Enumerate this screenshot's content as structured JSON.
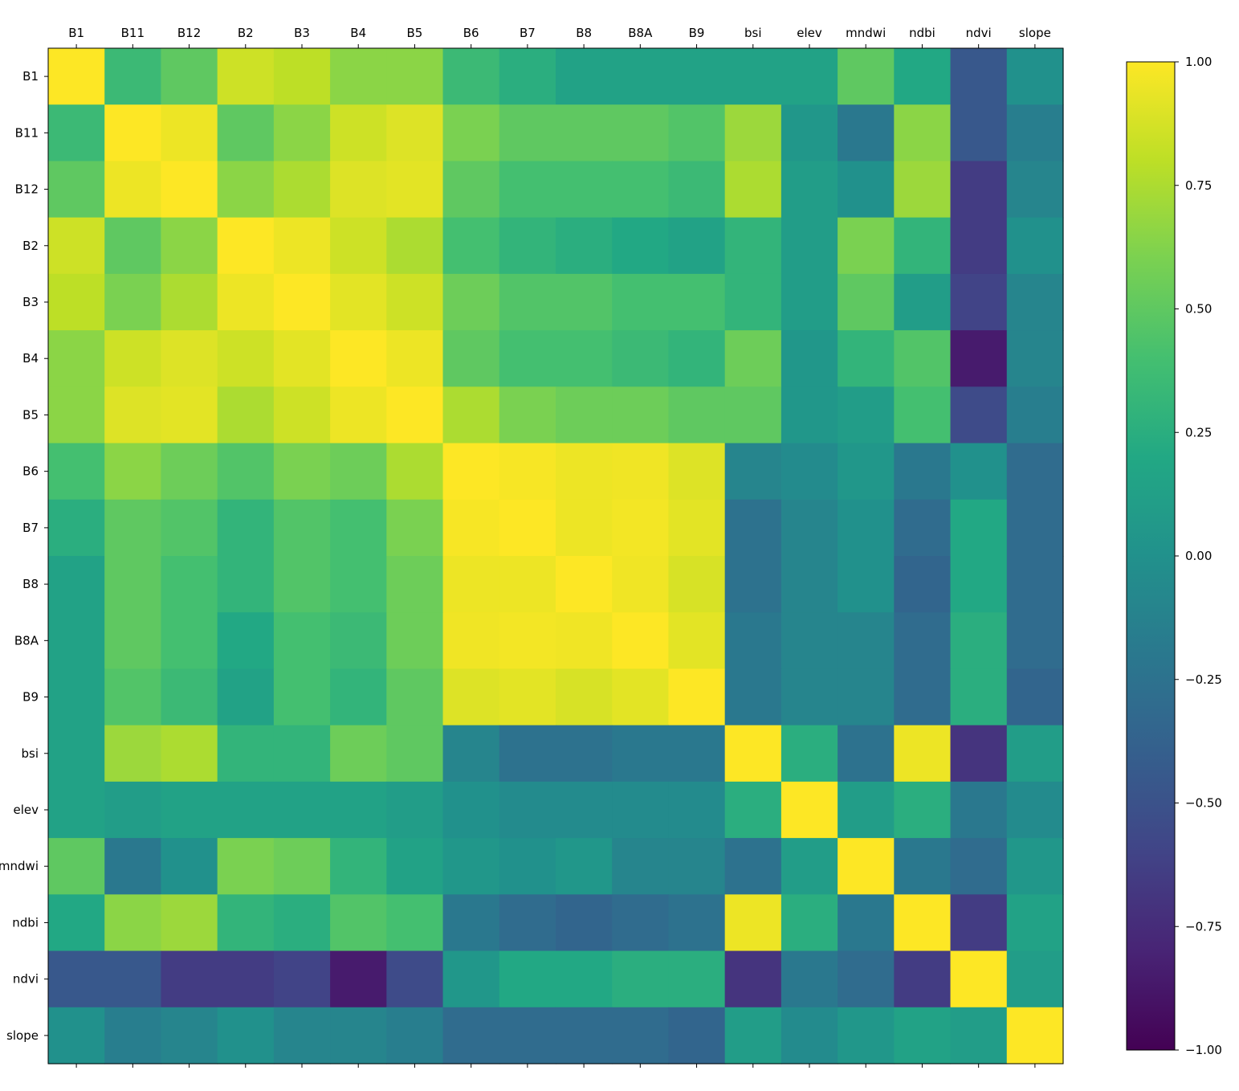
{
  "chart_data": {
    "type": "heatmap",
    "title": "",
    "xlabel": "",
    "ylabel": "",
    "labels": [
      "B1",
      "B11",
      "B12",
      "B2",
      "B3",
      "B4",
      "B5",
      "B6",
      "B7",
      "B8",
      "B8A",
      "B9",
      "bsi",
      "elev",
      "mndwi",
      "ndbi",
      "ndvi",
      "slope"
    ],
    "values": [
      [
        1.0,
        0.35,
        0.5,
        0.85,
        0.8,
        0.65,
        0.65,
        0.35,
        0.25,
        0.15,
        0.15,
        0.15,
        0.15,
        0.15,
        0.5,
        0.2,
        -0.45,
        0.0
      ],
      [
        0.35,
        1.0,
        0.95,
        0.5,
        0.65,
        0.85,
        0.9,
        0.6,
        0.5,
        0.5,
        0.5,
        0.45,
        0.7,
        0.05,
        -0.2,
        0.65,
        -0.45,
        -0.15
      ],
      [
        0.5,
        0.95,
        1.0,
        0.65,
        0.75,
        0.9,
        0.92,
        0.5,
        0.4,
        0.4,
        0.4,
        0.35,
        0.75,
        0.1,
        0.0,
        0.7,
        -0.65,
        -0.1
      ],
      [
        0.85,
        0.5,
        0.65,
        1.0,
        0.95,
        0.85,
        0.75,
        0.4,
        0.3,
        0.25,
        0.2,
        0.15,
        0.3,
        0.1,
        0.6,
        0.3,
        -0.65,
        0.0
      ],
      [
        0.8,
        0.6,
        0.75,
        0.95,
        1.0,
        0.92,
        0.85,
        0.55,
        0.45,
        0.45,
        0.4,
        0.4,
        0.3,
        0.1,
        0.5,
        0.1,
        -0.6,
        -0.1
      ],
      [
        0.65,
        0.85,
        0.9,
        0.85,
        0.92,
        1.0,
        0.95,
        0.5,
        0.4,
        0.4,
        0.35,
        0.3,
        0.55,
        0.05,
        0.3,
        0.45,
        -0.85,
        -0.1
      ],
      [
        0.65,
        0.9,
        0.92,
        0.75,
        0.85,
        0.95,
        1.0,
        0.75,
        0.6,
        0.55,
        0.55,
        0.5,
        0.5,
        0.05,
        0.1,
        0.4,
        -0.55,
        -0.15
      ],
      [
        0.4,
        0.65,
        0.55,
        0.45,
        0.6,
        0.55,
        0.75,
        1.0,
        0.98,
        0.95,
        0.96,
        0.9,
        -0.1,
        -0.05,
        0.05,
        -0.2,
        0.0,
        -0.3
      ],
      [
        0.25,
        0.5,
        0.45,
        0.3,
        0.45,
        0.4,
        0.6,
        0.98,
        1.0,
        0.95,
        0.97,
        0.92,
        -0.25,
        -0.1,
        0.0,
        -0.3,
        0.2,
        -0.3
      ],
      [
        0.15,
        0.5,
        0.4,
        0.3,
        0.45,
        0.4,
        0.55,
        0.95,
        0.95,
        1.0,
        0.96,
        0.88,
        -0.25,
        -0.1,
        0.0,
        -0.35,
        0.2,
        -0.3
      ],
      [
        0.15,
        0.5,
        0.4,
        0.2,
        0.4,
        0.35,
        0.55,
        0.96,
        0.97,
        0.96,
        1.0,
        0.92,
        -0.2,
        -0.1,
        -0.1,
        -0.3,
        0.25,
        -0.3
      ],
      [
        0.15,
        0.45,
        0.35,
        0.15,
        0.4,
        0.3,
        0.5,
        0.9,
        0.92,
        0.88,
        0.92,
        1.0,
        -0.2,
        -0.1,
        -0.1,
        -0.3,
        0.25,
        -0.35
      ],
      [
        0.15,
        0.7,
        0.75,
        0.3,
        0.3,
        0.55,
        0.5,
        -0.1,
        -0.25,
        -0.25,
        -0.2,
        -0.2,
        1.0,
        0.25,
        -0.25,
        0.95,
        -0.7,
        0.1
      ],
      [
        0.15,
        0.1,
        0.15,
        0.15,
        0.15,
        0.15,
        0.1,
        0.0,
        -0.05,
        -0.05,
        -0.05,
        -0.05,
        0.25,
        1.0,
        0.1,
        0.25,
        -0.2,
        -0.05
      ],
      [
        0.5,
        -0.2,
        0.0,
        0.6,
        0.55,
        0.3,
        0.15,
        0.05,
        0.0,
        0.05,
        -0.1,
        -0.1,
        -0.25,
        0.1,
        1.0,
        -0.2,
        -0.3,
        0.05
      ],
      [
        0.2,
        0.65,
        0.7,
        0.3,
        0.25,
        0.45,
        0.4,
        -0.2,
        -0.3,
        -0.35,
        -0.3,
        -0.25,
        0.95,
        0.25,
        -0.2,
        1.0,
        -0.65,
        0.15
      ],
      [
        -0.45,
        -0.45,
        -0.65,
        -0.65,
        -0.6,
        -0.85,
        -0.55,
        0.05,
        0.2,
        0.2,
        0.25,
        0.25,
        -0.7,
        -0.2,
        -0.3,
        -0.65,
        1.0,
        0.1
      ],
      [
        0.0,
        -0.15,
        -0.1,
        0.0,
        -0.1,
        -0.1,
        -0.15,
        -0.3,
        -0.3,
        -0.3,
        -0.3,
        -0.35,
        0.1,
        -0.05,
        0.05,
        0.15,
        0.1,
        1.0
      ]
    ],
    "colormap": "viridis",
    "vmin": -1.0,
    "vmax": 1.0,
    "colorbar_ticks": [
      "1.00",
      "0.75",
      "0.50",
      "0.25",
      "0.00",
      "−0.25",
      "−0.50",
      "−0.75",
      "−1.00"
    ],
    "colorbar_tick_values": [
      1.0,
      0.75,
      0.5,
      0.25,
      0.0,
      -0.25,
      -0.5,
      -0.75,
      -1.0
    ],
    "grid": false,
    "legend": "colorbar-right"
  }
}
